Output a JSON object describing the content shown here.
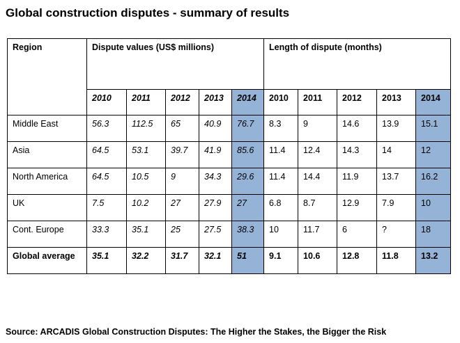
{
  "title": "Global construction disputes - summary of results",
  "table": {
    "headers": {
      "region": "Region",
      "values_group": "Dispute values (US$ millions)",
      "length_group": "Length of dispute (months)"
    },
    "years": [
      "2010",
      "2011",
      "2012",
      "2013",
      "2014"
    ],
    "rows": [
      {
        "region": "Middle East",
        "values": [
          "56.3",
          "112.5",
          "65",
          "40.9",
          "76.7"
        ],
        "length": [
          "8.3",
          "9",
          "14.6",
          "13.9",
          "15.1"
        ]
      },
      {
        "region": "Asia",
        "values": [
          "64.5",
          "53.1",
          "39.7",
          "41.9",
          "85.6"
        ],
        "length": [
          "11.4",
          "12.4",
          "14.3",
          "14",
          "12"
        ]
      },
      {
        "region": "North America",
        "values": [
          "64.5",
          "10.5",
          "9",
          "34.3",
          "29.6"
        ],
        "length": [
          "11.4",
          "14.4",
          "11.9",
          "13.7",
          "16.2"
        ]
      },
      {
        "region": "UK",
        "values": [
          "7.5",
          "10.2",
          "27",
          "27.9",
          "27"
        ],
        "length": [
          "6.8",
          "8.7",
          "12.9",
          "7.9",
          "10"
        ]
      },
      {
        "region": "Cont. Europe",
        "values": [
          "33.3",
          "35.1",
          "25",
          "27.5",
          "38.3"
        ],
        "length": [
          "10",
          "11.7",
          "6",
          "?",
          "18"
        ]
      },
      {
        "region": "Global average",
        "values": [
          "35.1",
          "32.2",
          "31.7",
          "32.1",
          "51"
        ],
        "length": [
          "9.1",
          "10.6",
          "12.8",
          "11.8",
          "13.2"
        ]
      }
    ],
    "highlight_color": "#95b3d7"
  },
  "source": "Source: ARCADIS Global Construction Disputes: The Higher the Stakes, the Bigger the Risk"
}
